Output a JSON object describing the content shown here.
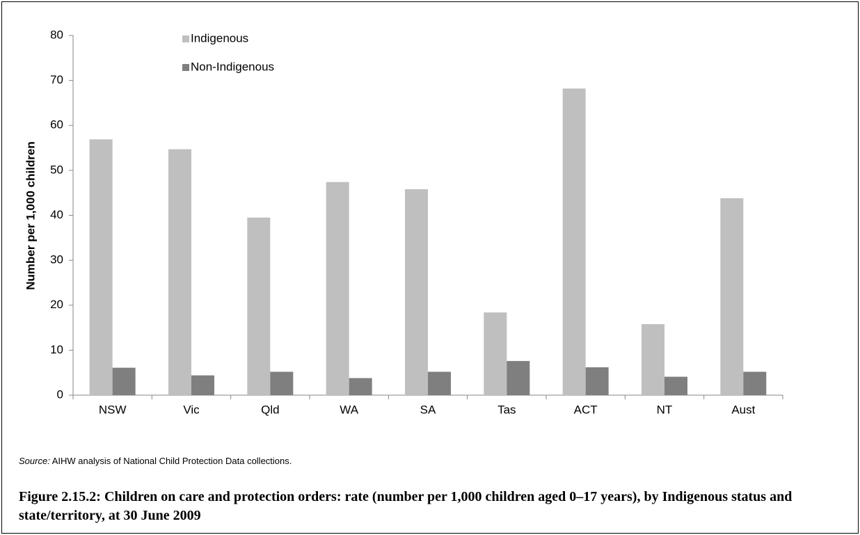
{
  "chart_data": {
    "type": "bar",
    "y_axis_label": "Number per 1,000 children",
    "categories": [
      "NSW",
      "Vic",
      "Qld",
      "WA",
      "SA",
      "Tas",
      "ACT",
      "NT",
      "Aust"
    ],
    "series": [
      {
        "name": "Indigenous",
        "color": "#bfbfbf",
        "values": [
          56.9,
          54.7,
          39.5,
          47.4,
          45.8,
          18.4,
          68.2,
          15.8,
          43.8
        ]
      },
      {
        "name": "Non-Indigenous",
        "color": "#7f7f7f",
        "values": [
          6.1,
          4.4,
          5.2,
          3.8,
          5.2,
          7.6,
          6.2,
          4.1,
          5.2
        ]
      }
    ],
    "ylim": [
      0,
      80
    ],
    "yticks": [
      0,
      10,
      20,
      30,
      40,
      50,
      60,
      70,
      80
    ],
    "grid": false,
    "legend": "top-left",
    "source_label": "Source:",
    "source_text": "AIHW analysis of National Child Protection Data collections.",
    "caption": "Figure 2.15.2: Children on care and protection orders: rate (number per 1,000 children aged 0–17 years), by Indigenous status and state/territory, at 30 June 2009"
  }
}
